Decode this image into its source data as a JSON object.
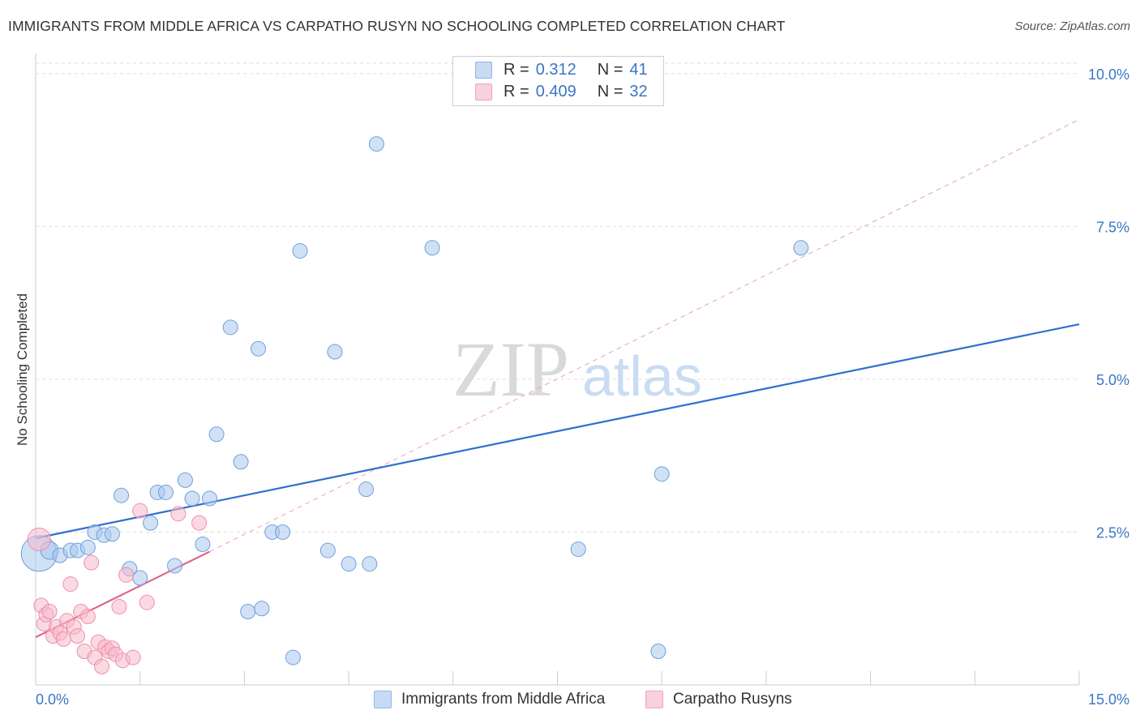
{
  "header": {
    "title": "IMMIGRANTS FROM MIDDLE AFRICA VS CARPATHO RUSYN NO SCHOOLING COMPLETED CORRELATION CHART",
    "source": "Source: ZipAtlas.com"
  },
  "legend": {
    "rows": [
      {
        "r_label": "R =",
        "r_value": "0.312",
        "n_label": "N =",
        "n_value": "41",
        "color": "#a9c8ef"
      },
      {
        "r_label": "R =",
        "r_value": "0.409",
        "n_label": "N =",
        "n_value": "32",
        "color": "#f6b9cc"
      }
    ]
  },
  "watermark": {
    "zip": "ZIP",
    "atlas": "atlas"
  },
  "chart_data": {
    "type": "scatter",
    "title": "IMMIGRANTS FROM MIDDLE AFRICA VS CARPATHO RUSYN NO SCHOOLING COMPLETED CORRELATION CHART",
    "xlabel": "",
    "ylabel": "No Schooling Completed",
    "xlim": [
      0,
      15
    ],
    "ylim": [
      0,
      10.25
    ],
    "x_tick_labels": [
      "0.0%",
      "15.0%"
    ],
    "y_ticks": [
      2.5,
      5.0,
      7.5,
      10.0
    ],
    "y_tick_labels": [
      "2.5%",
      "5.0%",
      "7.5%",
      "10.0%"
    ],
    "grid": true,
    "legend_position": "top-center",
    "series": [
      {
        "name": "Immigrants from Middle Africa",
        "color": "#a9c8ef",
        "stroke": "#6f9fd9",
        "trend": {
          "x0": 0,
          "y0": 2.4,
          "x1": 15,
          "y1": 5.9,
          "color": "#2f6fce"
        },
        "points": [
          [
            0.05,
            2.15,
            22
          ],
          [
            0.2,
            2.2,
            11
          ],
          [
            0.35,
            2.12,
            9
          ],
          [
            0.5,
            2.2,
            9
          ],
          [
            0.6,
            2.2,
            9
          ],
          [
            0.75,
            2.25,
            9
          ],
          [
            0.85,
            2.5,
            9
          ],
          [
            0.98,
            2.45,
            9
          ],
          [
            1.1,
            2.47,
            9
          ],
          [
            1.23,
            3.1,
            9
          ],
          [
            1.35,
            1.9,
            9
          ],
          [
            1.5,
            1.75,
            9
          ],
          [
            1.65,
            2.65,
            9
          ],
          [
            1.75,
            3.15,
            9
          ],
          [
            1.87,
            3.15,
            9
          ],
          [
            2.0,
            1.95,
            9
          ],
          [
            2.15,
            3.35,
            9
          ],
          [
            2.25,
            3.05,
            9
          ],
          [
            2.4,
            2.3,
            9
          ],
          [
            2.5,
            3.05,
            9
          ],
          [
            2.6,
            4.1,
            9
          ],
          [
            2.8,
            5.85,
            9
          ],
          [
            2.95,
            3.65,
            9
          ],
          [
            3.05,
            1.2,
            9
          ],
          [
            3.2,
            5.5,
            9
          ],
          [
            3.25,
            1.25,
            9
          ],
          [
            3.4,
            2.5,
            9
          ],
          [
            3.55,
            2.5,
            9
          ],
          [
            3.7,
            0.45,
            9
          ],
          [
            3.8,
            7.1,
            9
          ],
          [
            4.2,
            2.2,
            9
          ],
          [
            4.3,
            5.45,
            9
          ],
          [
            4.5,
            1.98,
            9
          ],
          [
            4.8,
            1.98,
            9
          ],
          [
            4.75,
            3.2,
            9
          ],
          [
            4.9,
            8.85,
            9
          ],
          [
            5.7,
            7.15,
            9
          ],
          [
            7.8,
            2.22,
            9
          ],
          [
            8.95,
            0.55,
            9
          ],
          [
            9.0,
            3.45,
            9
          ],
          [
            11.0,
            7.15,
            9
          ]
        ]
      },
      {
        "name": "Carpatho Rusyns",
        "color": "#f6b9cc",
        "stroke": "#ee8fab",
        "trend": {
          "x0": 0,
          "y0": 0.78,
          "x1": 2.5,
          "y1": 2.18,
          "color": "#e0628b",
          "extended": {
            "x1": 15,
            "y1": 9.25
          }
        },
        "points": [
          [
            0.05,
            2.38,
            14
          ],
          [
            0.08,
            1.3,
            9
          ],
          [
            0.12,
            1.0,
            9
          ],
          [
            0.15,
            1.15,
            9
          ],
          [
            0.2,
            1.2,
            9
          ],
          [
            0.25,
            0.8,
            9
          ],
          [
            0.3,
            0.95,
            9
          ],
          [
            0.35,
            0.85,
            9
          ],
          [
            0.4,
            0.75,
            9
          ],
          [
            0.45,
            1.05,
            9
          ],
          [
            0.5,
            1.65,
            9
          ],
          [
            0.55,
            0.95,
            9
          ],
          [
            0.6,
            0.8,
            9
          ],
          [
            0.65,
            1.2,
            9
          ],
          [
            0.7,
            0.55,
            9
          ],
          [
            0.75,
            1.12,
            9
          ],
          [
            0.8,
            2.0,
            9
          ],
          [
            0.85,
            0.45,
            9
          ],
          [
            0.9,
            0.7,
            9
          ],
          [
            0.95,
            0.3,
            9
          ],
          [
            1.0,
            0.62,
            9
          ],
          [
            1.05,
            0.55,
            9
          ],
          [
            1.1,
            0.6,
            9
          ],
          [
            1.15,
            0.5,
            9
          ],
          [
            1.2,
            1.28,
            9
          ],
          [
            1.25,
            0.4,
            9
          ],
          [
            1.3,
            1.8,
            9
          ],
          [
            1.4,
            0.45,
            9
          ],
          [
            1.5,
            2.85,
            9
          ],
          [
            1.6,
            1.35,
            9
          ],
          [
            2.05,
            2.8,
            9
          ],
          [
            2.35,
            2.65,
            9
          ]
        ]
      }
    ]
  }
}
